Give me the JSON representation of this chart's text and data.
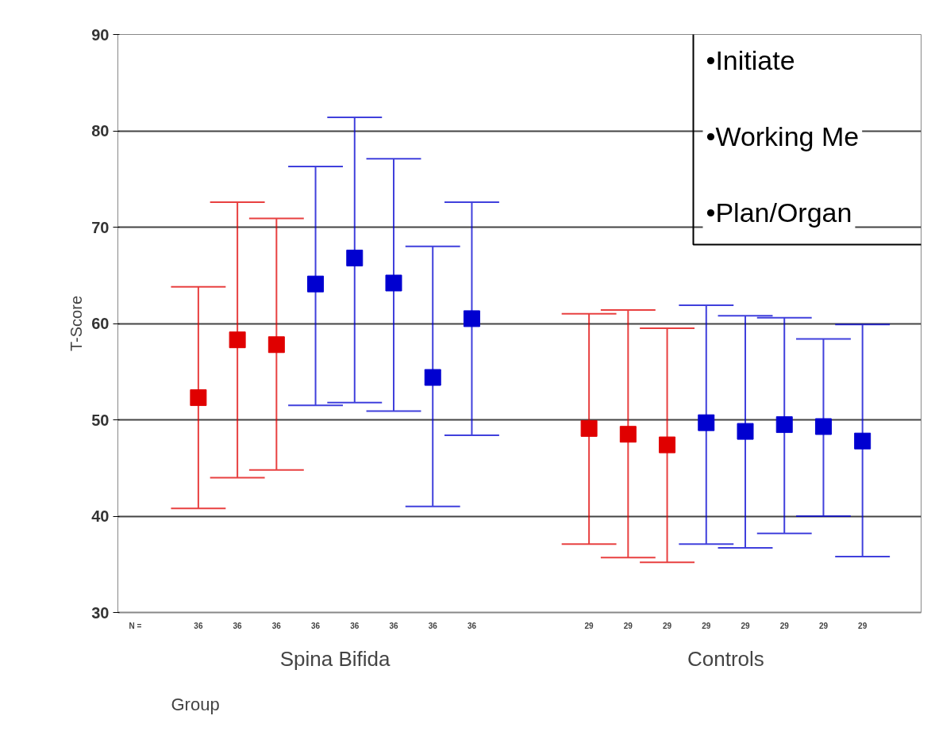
{
  "chart_data": {
    "type": "scatter",
    "xlabel": "Group",
    "ylabel": "T-Score",
    "categories": [
      "36",
      "36",
      "36",
      "36",
      "36",
      "36",
      "36",
      "36",
      null,
      null,
      "29",
      "29",
      "29",
      "29",
      "29",
      "29",
      "29",
      "29"
    ],
    "series": [
      {
        "color": "#e00000",
        "values": [
          52.3,
          58.3,
          57.8,
          null,
          null,
          null,
          null,
          null,
          null,
          null,
          49.1,
          48.5,
          47.4,
          null,
          null,
          null,
          null,
          null
        ],
        "errors": [
          [
            40.8,
            63.8
          ],
          [
            44.0,
            72.6
          ],
          [
            44.8,
            70.9
          ],
          null,
          null,
          null,
          null,
          null,
          null,
          null,
          [
            37.1,
            61.0
          ],
          [
            35.7,
            61.4
          ],
          [
            35.2,
            59.5
          ],
          null,
          null,
          null,
          null,
          null
        ]
      },
      {
        "color": "#0000d0",
        "values": [
          null,
          null,
          null,
          64.1,
          66.8,
          64.2,
          54.4,
          60.5,
          null,
          null,
          null,
          null,
          null,
          49.7,
          48.8,
          49.5,
          49.3,
          47.8
        ],
        "errors": [
          null,
          null,
          null,
          [
            51.5,
            76.3
          ],
          [
            51.8,
            81.4
          ],
          [
            50.9,
            77.1
          ],
          [
            41.0,
            68.0
          ],
          [
            48.4,
            72.6
          ],
          null,
          null,
          null,
          null,
          null,
          [
            37.1,
            61.9
          ],
          [
            36.7,
            60.8
          ],
          [
            38.2,
            60.6
          ],
          [
            40.0,
            58.4
          ],
          [
            35.8,
            59.9
          ]
        ]
      }
    ],
    "ylim": [
      30,
      90
    ],
    "yticks": [
      30,
      40,
      50,
      60,
      70,
      80,
      90
    ],
    "grid": "y",
    "marker": "square",
    "legend": false,
    "annotations": [
      "N =",
      "Spina Bifida",
      "Controls",
      "•Initiate",
      "•Working Me",
      "•Plan/Organ"
    ]
  }
}
